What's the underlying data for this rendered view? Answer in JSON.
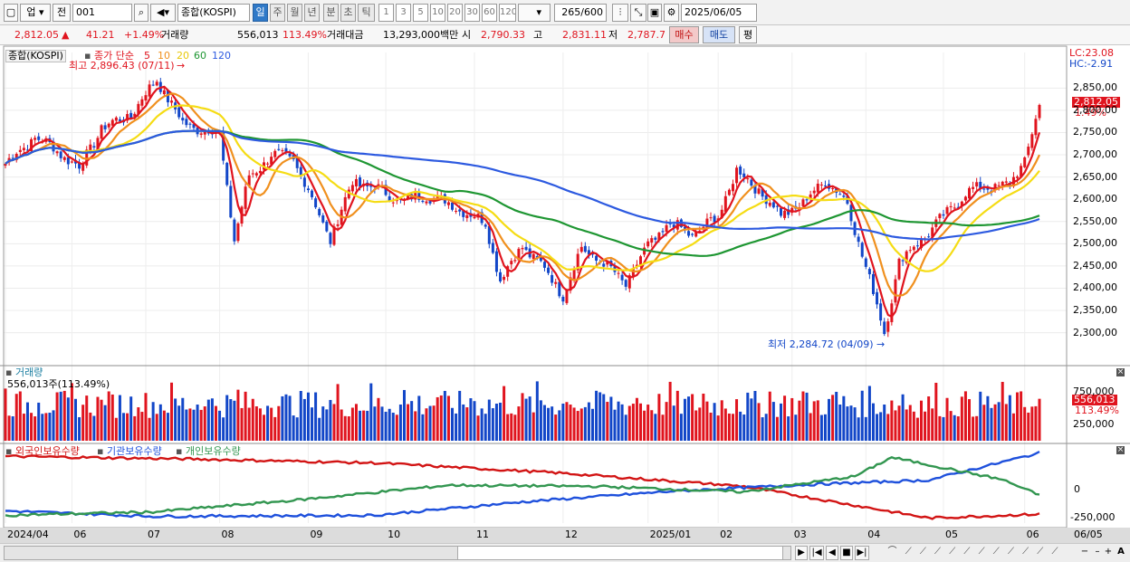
{
  "toolbar": {
    "market": "업",
    "prev": "전",
    "code": "001",
    "name": "종합(KOSPI)",
    "periods": [
      "일",
      "주",
      "월",
      "년",
      "분",
      "초",
      "틱"
    ],
    "active_period": "일",
    "counts": [
      "1",
      "3",
      "5",
      "10",
      "20",
      "30",
      "60",
      "120"
    ],
    "view_count": "265",
    "view_total": "/600",
    "date": "2025/06/05"
  },
  "quote": {
    "price": "2,812.05",
    "change": "41.21",
    "change_pct": "+1.49%",
    "volume_label": "거래량",
    "volume": "556,013",
    "volume_pct": "113.49%",
    "amount_label": "거래대금",
    "amount": "13,293,000백만",
    "open_label": "시",
    "open": "2,790.33",
    "high_label": "고",
    "high": "2,831.11",
    "low_label": "저",
    "low": "2,787.7",
    "buy": "매수",
    "sell": "매도",
    "eval": "평"
  },
  "price_panel": {
    "name": "종합(KOSPI)",
    "ma_label": "종가 단순",
    "ma_periods": [
      "5",
      "10",
      "20",
      "60",
      "120"
    ],
    "max_label": "최고 2,896.43 (07/11)",
    "min_label": "최저 2,284.72 (04/09)",
    "lc": "LC:23.08",
    "hc": "HC:-2.91",
    "last_price": "2,812.05",
    "last_pct": "1.49%"
  },
  "volume_panel": {
    "title": "거래량",
    "info": "556,013주(113.49%)",
    "last": "556,013",
    "last_pct": "113.49%"
  },
  "investor_panel": {
    "foreign": "외국인보유수량",
    "inst": "기관보유수량",
    "retail": "개인보유수량"
  },
  "x_axis": {
    "labels": [
      "2024/04",
      "06",
      "07",
      "08",
      "09",
      "10",
      "11",
      "12",
      "2025/01",
      "02",
      "03",
      "04",
      "05",
      "06"
    ],
    "right_label": "06/05"
  },
  "chart_data": {
    "type": "candlestick",
    "price_ticks": [
      "2,850,00",
      "2,800,00",
      "2,750,00",
      "2,700,00",
      "2,650,00",
      "2,600,00",
      "2,550,00",
      "2,500,00",
      "2,450,00",
      "2,400,00",
      "2,350,00",
      "2,300,00"
    ],
    "price_tick_values": [
      2850,
      2800,
      2750,
      2700,
      2650,
      2600,
      2550,
      2500,
      2450,
      2400,
      2350,
      2300
    ],
    "volume_ticks": [
      "750,000",
      "250,000"
    ],
    "volume_tick_values": [
      750000,
      250000
    ],
    "investor_ticks": [
      "0",
      "-250,000"
    ],
    "investor_tick_values": [
      0,
      -250000
    ],
    "price_ylim": [
      2230,
      2930
    ],
    "volume_ylim": [
      0,
      1000000
    ],
    "investor_ylim": [
      -300000,
      350000
    ],
    "month_index": [
      0,
      18,
      38,
      58,
      82,
      103,
      127,
      151,
      174,
      193,
      213,
      233,
      254,
      276
    ],
    "anchors": [
      [
        0,
        2680
      ],
      [
        8,
        2740
      ],
      [
        14,
        2710
      ],
      [
        20,
        2670
      ],
      [
        26,
        2760
      ],
      [
        34,
        2790
      ],
      [
        41,
        2870
      ],
      [
        48,
        2770
      ],
      [
        58,
        2745
      ],
      [
        62,
        2510
      ],
      [
        66,
        2650
      ],
      [
        72,
        2700
      ],
      [
        78,
        2690
      ],
      [
        82,
        2620
      ],
      [
        88,
        2510
      ],
      [
        94,
        2640
      ],
      [
        100,
        2625
      ],
      [
        108,
        2595
      ],
      [
        114,
        2610
      ],
      [
        124,
        2575
      ],
      [
        130,
        2545
      ],
      [
        134,
        2420
      ],
      [
        140,
        2495
      ],
      [
        146,
        2445
      ],
      [
        151,
        2385
      ],
      [
        156,
        2490
      ],
      [
        162,
        2455
      ],
      [
        168,
        2410
      ],
      [
        174,
        2495
      ],
      [
        180,
        2545
      ],
      [
        186,
        2520
      ],
      [
        193,
        2560
      ],
      [
        198,
        2665
      ],
      [
        204,
        2620
      ],
      [
        210,
        2565
      ],
      [
        216,
        2590
      ],
      [
        222,
        2645
      ],
      [
        228,
        2590
      ],
      [
        234,
        2420
      ],
      [
        238,
        2300
      ],
      [
        242,
        2460
      ],
      [
        248,
        2510
      ],
      [
        254,
        2560
      ],
      [
        260,
        2615
      ],
      [
        266,
        2630
      ],
      [
        272,
        2630
      ],
      [
        276,
        2690
      ],
      [
        280,
        2812
      ]
    ],
    "ma_colors": [
      "#e0141e",
      "#f0901e",
      "#f5dc14",
      "#1e9632",
      "#2d5ae0"
    ],
    "investor_series": [
      {
        "name": "외국인보유수량",
        "color": "#d21414",
        "points": [
          [
            0,
            300000
          ],
          [
            50,
            275000
          ],
          [
            100,
            240000
          ],
          [
            150,
            150000
          ],
          [
            200,
            30000
          ],
          [
            250,
            -255000
          ],
          [
            280,
            -220000
          ]
        ]
      },
      {
        "name": "기관보유수량",
        "color": "#1e50dc",
        "points": [
          [
            0,
            -190000
          ],
          [
            40,
            -240000
          ],
          [
            100,
            -230000
          ],
          [
            140,
            -110000
          ],
          [
            180,
            -15000
          ],
          [
            220,
            50000
          ],
          [
            250,
            85000
          ],
          [
            280,
            330000
          ]
        ]
      },
      {
        "name": "개인보유수량",
        "color": "#329650",
        "points": [
          [
            0,
            -230000
          ],
          [
            40,
            -200000
          ],
          [
            80,
            -90000
          ],
          [
            120,
            40000
          ],
          [
            160,
            30000
          ],
          [
            200,
            -20000
          ],
          [
            230,
            120000
          ],
          [
            240,
            290000
          ],
          [
            270,
            90000
          ],
          [
            280,
            -50000
          ]
        ]
      }
    ]
  },
  "bottombar": {
    "ctrls": [
      "▶",
      "|◀",
      "◀",
      "■",
      "▶|"
    ]
  },
  "colors": {
    "up": "#e0141e",
    "down": "#1246c8",
    "accent": "#2f79c8"
  }
}
